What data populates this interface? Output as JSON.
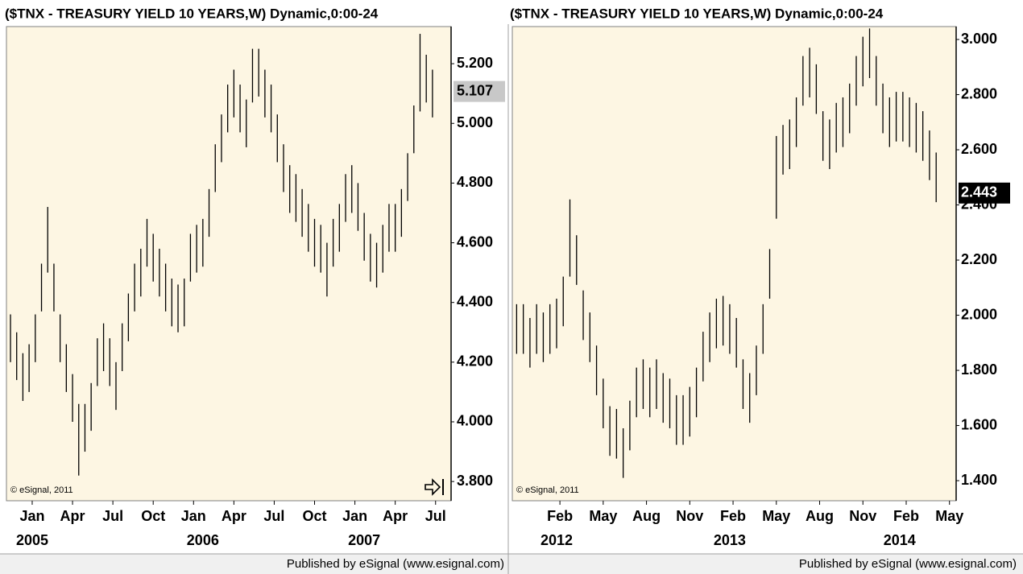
{
  "chart_data": [
    {
      "type": "hl-bar",
      "title": "($TNX - TREASURY YIELD 10 YEARS,W) Dynamic,0:00-24",
      "copyright": "© eSignal, 2011",
      "footer": "Published by eSignal (www.esignal.com)",
      "color": "#000000",
      "background": "#fdf6e3",
      "x": [
        -7,
        -5,
        -3,
        -1,
        1,
        3,
        5,
        7,
        9,
        11,
        13,
        15,
        17,
        19,
        21,
        23,
        25,
        27,
        29,
        31,
        33,
        35,
        37,
        39,
        41,
        43,
        45,
        47,
        49,
        51,
        53,
        55,
        57,
        59,
        61,
        63,
        65,
        67,
        69,
        71,
        73,
        75,
        77,
        79,
        81,
        83,
        85,
        87,
        89,
        91,
        93,
        95,
        97,
        99,
        101,
        103,
        105,
        107,
        109,
        111,
        113,
        115,
        117,
        119,
        121,
        123,
        125,
        127,
        129
      ],
      "high": [
        4.36,
        4.3,
        4.23,
        4.26,
        4.36,
        4.53,
        4.72,
        4.53,
        4.36,
        4.26,
        4.16,
        4.06,
        4.06,
        4.13,
        4.28,
        4.33,
        4.28,
        4.2,
        4.33,
        4.43,
        4.53,
        4.58,
        4.68,
        4.63,
        4.58,
        4.53,
        4.48,
        4.46,
        4.48,
        4.63,
        4.66,
        4.68,
        4.78,
        4.93,
        5.03,
        5.13,
        5.18,
        5.13,
        5.08,
        5.25,
        5.25,
        5.18,
        5.13,
        5.03,
        4.93,
        4.86,
        4.83,
        4.78,
        4.73,
        4.68,
        4.66,
        4.6,
        4.68,
        4.73,
        4.83,
        4.86,
        4.8,
        4.7,
        4.63,
        4.6,
        4.66,
        4.73,
        4.73,
        4.78,
        4.9,
        5.06,
        5.3,
        5.23,
        5.18
      ],
      "low": [
        4.2,
        4.14,
        4.07,
        4.1,
        4.2,
        4.37,
        4.5,
        4.37,
        4.2,
        4.1,
        4.0,
        3.82,
        3.9,
        3.97,
        4.12,
        4.17,
        4.12,
        4.04,
        4.17,
        4.27,
        4.37,
        4.42,
        4.52,
        4.47,
        4.42,
        4.37,
        4.32,
        4.3,
        4.32,
        4.47,
        4.5,
        4.52,
        4.62,
        4.77,
        4.87,
        4.97,
        5.02,
        4.97,
        4.92,
        5.07,
        5.09,
        5.02,
        4.97,
        4.87,
        4.77,
        4.7,
        4.67,
        4.62,
        4.57,
        4.52,
        4.5,
        4.42,
        4.52,
        4.57,
        4.67,
        4.7,
        4.64,
        4.54,
        4.47,
        4.45,
        4.5,
        4.57,
        4.57,
        4.62,
        4.74,
        4.9,
        5.04,
        5.07,
        5.02
      ],
      "last_value": 5.107,
      "last_style": "gray",
      "xlim": [
        -8.3,
        135
      ],
      "ylim": [
        3.741,
        5.319
      ],
      "yticks": [
        {
          "value": 3.8,
          "label": "3.800"
        },
        {
          "value": 4.0,
          "label": "4.000"
        },
        {
          "value": 4.2,
          "label": "4.200"
        },
        {
          "value": 4.4,
          "label": "4.400"
        },
        {
          "value": 4.6,
          "label": "4.600"
        },
        {
          "value": 4.8,
          "label": "4.800"
        },
        {
          "value": 5.0,
          "label": "5.000"
        },
        {
          "value": 5.2,
          "label": "5.200"
        }
      ],
      "xticks": [
        {
          "value": 0,
          "label": "Jan"
        },
        {
          "value": 13,
          "label": "Apr"
        },
        {
          "value": 26,
          "label": "Jul"
        },
        {
          "value": 39,
          "label": "Oct"
        },
        {
          "value": 52,
          "label": "Jan"
        },
        {
          "value": 65,
          "label": "Apr"
        },
        {
          "value": 78,
          "label": "Jul"
        },
        {
          "value": 91,
          "label": "Oct"
        },
        {
          "value": 104,
          "label": "Jan"
        },
        {
          "value": 117,
          "label": "Apr"
        },
        {
          "value": 130,
          "label": "Jul"
        }
      ],
      "year_ticks": [
        {
          "value": 0,
          "label": "2005"
        },
        {
          "value": 55,
          "label": "2006"
        },
        {
          "value": 107,
          "label": "2007"
        }
      ]
    },
    {
      "type": "hl-bar",
      "title": "($TNX - TREASURY YIELD 10 YEARS,W) Dynamic,0:00-24",
      "copyright": "© eSignal, 2011",
      "footer": "Published by eSignal (www.esignal.com)",
      "color": "#000000",
      "background": "#fdf6e3",
      "x": [
        -13,
        -11,
        -9,
        -7,
        -5,
        -3,
        -1,
        1,
        3,
        5,
        7,
        9,
        11,
        13,
        15,
        17,
        19,
        21,
        23,
        25,
        27,
        29,
        31,
        33,
        35,
        37,
        39,
        41,
        43,
        45,
        47,
        49,
        51,
        53,
        55,
        57,
        59,
        61,
        63,
        65,
        67,
        69,
        71,
        73,
        75,
        77,
        79,
        81,
        83,
        85,
        87,
        89,
        91,
        93,
        95,
        97,
        99,
        101,
        103,
        105,
        107,
        109,
        111,
        113
      ],
      "high": [
        2.04,
        2.04,
        1.99,
        2.04,
        2.01,
        2.04,
        2.06,
        2.14,
        2.42,
        2.29,
        2.09,
        2.01,
        1.89,
        1.77,
        1.67,
        1.66,
        1.59,
        1.69,
        1.81,
        1.84,
        1.81,
        1.84,
        1.79,
        1.77,
        1.71,
        1.71,
        1.74,
        1.81,
        1.94,
        2.01,
        2.06,
        2.07,
        2.04,
        1.99,
        1.84,
        1.79,
        1.89,
        2.04,
        2.24,
        2.65,
        2.69,
        2.71,
        2.79,
        2.94,
        2.97,
        2.91,
        2.74,
        2.71,
        2.77,
        2.79,
        2.84,
        2.94,
        3.01,
        3.04,
        2.94,
        2.84,
        2.79,
        2.81,
        2.81,
        2.79,
        2.77,
        2.74,
        2.67,
        2.59
      ],
      "low": [
        1.86,
        1.86,
        1.81,
        1.86,
        1.83,
        1.86,
        1.88,
        1.96,
        2.14,
        2.11,
        1.91,
        1.83,
        1.71,
        1.59,
        1.49,
        1.48,
        1.41,
        1.51,
        1.63,
        1.66,
        1.63,
        1.66,
        1.61,
        1.59,
        1.53,
        1.53,
        1.56,
        1.63,
        1.76,
        1.83,
        1.88,
        1.89,
        1.86,
        1.81,
        1.66,
        1.61,
        1.71,
        1.86,
        2.06,
        2.35,
        2.51,
        2.53,
        2.61,
        2.76,
        2.79,
        2.73,
        2.56,
        2.53,
        2.59,
        2.61,
        2.66,
        2.76,
        2.83,
        2.86,
        2.76,
        2.66,
        2.61,
        2.63,
        2.63,
        2.61,
        2.59,
        2.56,
        2.49,
        2.41
      ],
      "last_value": 2.443,
      "last_style": "black",
      "xlim": [
        -14.3,
        119
      ],
      "ylim": [
        1.333,
        3.041
      ],
      "yticks": [
        {
          "value": 1.4,
          "label": "1.400"
        },
        {
          "value": 1.6,
          "label": "1.600"
        },
        {
          "value": 1.8,
          "label": "1.800"
        },
        {
          "value": 2.0,
          "label": "2.000"
        },
        {
          "value": 2.2,
          "label": "2.200"
        },
        {
          "value": 2.4,
          "label": "2.400"
        },
        {
          "value": 2.6,
          "label": "2.600"
        },
        {
          "value": 2.8,
          "label": "2.800"
        },
        {
          "value": 3.0,
          "label": "3.000"
        }
      ],
      "xticks": [
        {
          "value": 0,
          "label": "Feb"
        },
        {
          "value": 13,
          "label": "May"
        },
        {
          "value": 26,
          "label": "Aug"
        },
        {
          "value": 39,
          "label": "Nov"
        },
        {
          "value": 52,
          "label": "Feb"
        },
        {
          "value": 65,
          "label": "May"
        },
        {
          "value": 78,
          "label": "Aug"
        },
        {
          "value": 91,
          "label": "Nov"
        },
        {
          "value": 104,
          "label": "Feb"
        },
        {
          "value": 117,
          "label": "May"
        }
      ],
      "year_ticks": [
        {
          "value": -1,
          "label": "2012"
        },
        {
          "value": 51,
          "label": "2013"
        },
        {
          "value": 102,
          "label": "2014"
        }
      ]
    }
  ]
}
